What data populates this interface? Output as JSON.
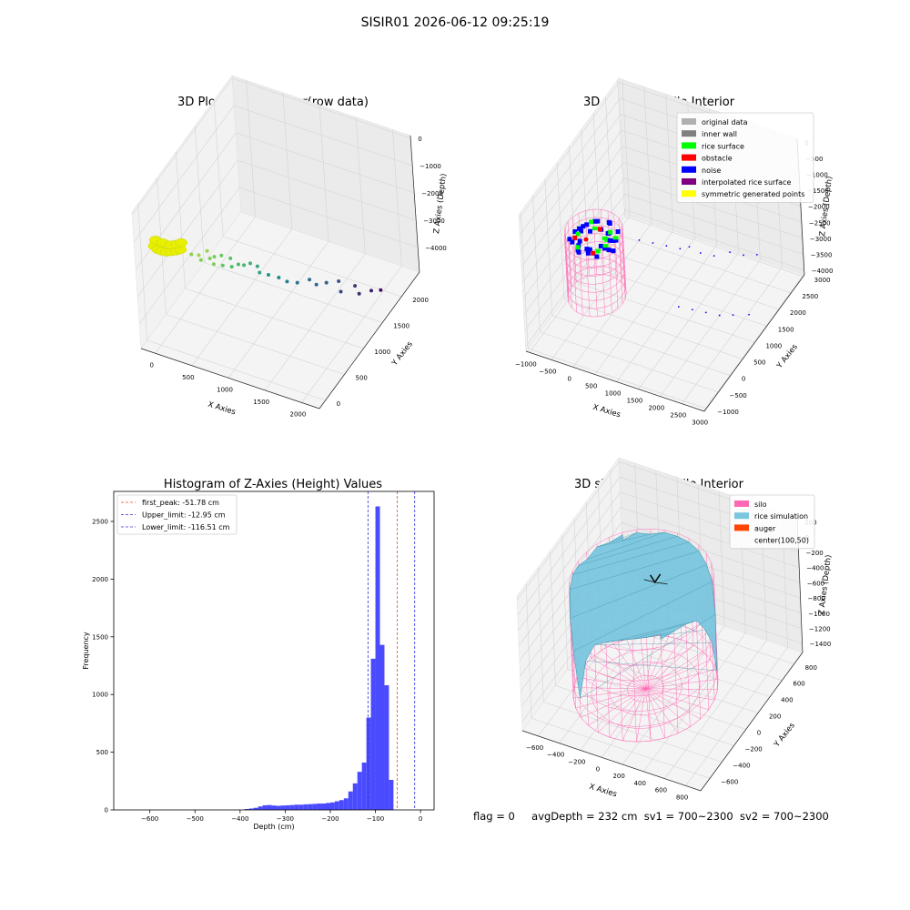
{
  "figure": {
    "suptitle": "SISIR01 2026-06-12 09:25:19",
    "status": {
      "flag": "flag = 0",
      "avg_depth": "avgDepth = 232 cm",
      "sv1": "sv1 = 700~2300",
      "sv2": "sv2 = 700~2300"
    }
  },
  "colors": {
    "background": "#ffffff",
    "pane": "#efefef",
    "grid": "#d4d4d4",
    "hist_bar": "#4a4aff",
    "first_peak_line": "#e8453c",
    "limit_line": "#3333dd",
    "silo": "#ff69b4",
    "rice": "#79c6de",
    "auger": "#ff4500",
    "original": "#b0b0b0",
    "inner_wall": "#808080",
    "rice_surface": "#00ff00",
    "obstacle": "#ff0000",
    "noise": "#0000ff",
    "interp": "#800080",
    "symmetric": "#ffff00"
  },
  "chart_data": [
    {
      "id": "raw3d",
      "type": "scatter",
      "title": "3D Plot of Silo Interior(row data)",
      "xlabel": "X Axies",
      "ylabel": "Y Axies",
      "zlabel": "Z Axies (Depth)",
      "xlim": [
        -200,
        2200
      ],
      "ylim": [
        -200,
        2300
      ],
      "zlim": [
        -4300,
        100
      ],
      "x_ticks": [
        "0",
        "500",
        "1000",
        "1500",
        "2000"
      ],
      "y_ticks": [
        "0",
        "500",
        "1000",
        "1500",
        "2000"
      ],
      "z_ticks": [
        "0",
        "−1000",
        "−2000",
        "−3000",
        "−4000"
      ],
      "colormap": "viridis",
      "series": [
        {
          "role": "symmetric",
          "points": [
            [
              -40,
              -10,
              -1200
            ],
            [
              0,
              0,
              -1300
            ],
            [
              40,
              20,
              -1350
            ],
            [
              90,
              40,
              -1380
            ],
            [
              150,
              60,
              -1350
            ],
            [
              210,
              70,
              -1300
            ],
            [
              260,
              90,
              -1250
            ],
            [
              -60,
              60,
              -1150
            ],
            [
              30,
              80,
              -1200
            ],
            [
              120,
              110,
              -1250
            ],
            [
              190,
              130,
              -1200
            ],
            [
              240,
              150,
              -1150
            ]
          ]
        },
        {
          "role": "depth",
          "points": [
            [
              320,
              230,
              -1600,
              0.82
            ],
            [
              380,
              300,
              -1700,
              0.85
            ],
            [
              430,
              260,
              -1750,
              0.8
            ],
            [
              450,
              380,
              -1650,
              0.84
            ],
            [
              500,
              350,
              -1800,
              0.8
            ],
            [
              520,
              420,
              -1850,
              0.78
            ],
            [
              560,
              330,
              -1900,
              0.8
            ],
            [
              600,
              450,
              -1800,
              0.77
            ],
            [
              640,
              400,
              -2000,
              0.74
            ],
            [
              680,
              520,
              -1950,
              0.72
            ],
            [
              720,
              470,
              -2100,
              0.7
            ],
            [
              760,
              560,
              -2150,
              0.68
            ],
            [
              800,
              620,
              -2250,
              0.66
            ],
            [
              840,
              700,
              -2300,
              0.64
            ],
            [
              900,
              760,
              -2450,
              0.6
            ],
            [
              960,
              700,
              -2500,
              0.58
            ],
            [
              1020,
              800,
              -2700,
              0.52
            ],
            [
              1100,
              900,
              -2900,
              0.46
            ],
            [
              1180,
              950,
              -3050,
              0.42
            ],
            [
              1260,
              1050,
              -3200,
              0.38
            ],
            [
              1340,
              1200,
              -3300,
              0.36
            ],
            [
              1400,
              1250,
              -3500,
              0.33
            ],
            [
              1480,
              1350,
              -3550,
              0.3
            ],
            [
              1560,
              1500,
              -3700,
              0.26
            ],
            [
              1640,
              1400,
              -3800,
              0.22
            ],
            [
              1720,
              1600,
              -3900,
              0.18
            ],
            [
              1800,
              1550,
              -4000,
              0.14
            ],
            [
              1880,
              1700,
              -4100,
              0.1
            ],
            [
              1950,
              1800,
              -4200,
              0.05
            ]
          ]
        }
      ]
    },
    {
      "id": "classify3d",
      "type": "scatter",
      "title": "3D classify of Silo Interior",
      "xlabel": "X Axies",
      "ylabel": "Y Axies",
      "zlabel": "Z Axies (Depth)",
      "xlim": [
        -1100,
        3100
      ],
      "ylim": [
        -1100,
        3100
      ],
      "zlim": [
        -4100,
        100
      ],
      "x_ticks": [
        "−1000",
        "−500",
        "0",
        "500",
        "1000",
        "1500",
        "2000",
        "2500",
        "3000"
      ],
      "y_ticks": [
        "−1000",
        "−500",
        "0",
        "500",
        "1000",
        "1500",
        "2000",
        "2500",
        "3000"
      ],
      "z_ticks": [
        "0",
        "−500",
        "−1000",
        "−1500",
        "−2000",
        "−2500",
        "−3000",
        "−3500",
        "−4000"
      ],
      "legend_position": "upper right",
      "legend": [
        {
          "label": "original data",
          "color": "#b0b0b0"
        },
        {
          "label": "inner wall",
          "color": "#808080"
        },
        {
          "label": "rice surface",
          "color": "#00ff00"
        },
        {
          "label": "obstacle",
          "color": "#ff0000"
        },
        {
          "label": "noise",
          "color": "#0000ff"
        },
        {
          "label": "interpolated rice surface",
          "color": "#800080"
        },
        {
          "label": "symmetric generated points",
          "color": "#ffff00"
        }
      ],
      "silo": {
        "center": [
          0,
          0
        ],
        "radius": 600,
        "top": -1000,
        "bottom": -3000
      },
      "noise_points": [
        [
          900,
          300,
          -1200
        ],
        [
          1100,
          500,
          -1400
        ],
        [
          1300,
          700,
          -1600
        ],
        [
          1500,
          900,
          -1800
        ],
        [
          1600,
          1100,
          -1900
        ],
        [
          1800,
          1200,
          -2100
        ],
        [
          2000,
          1400,
          -2300
        ],
        [
          2200,
          1700,
          -2400
        ],
        [
          2400,
          1900,
          -2600
        ],
        [
          2600,
          2100,
          -2700
        ],
        [
          1700,
          400,
          -3000
        ],
        [
          1900,
          600,
          -3200
        ],
        [
          2100,
          800,
          -3400
        ],
        [
          2300,
          1000,
          -3600
        ],
        [
          2500,
          1200,
          -3700
        ],
        [
          2700,
          1500,
          -3900
        ]
      ]
    },
    {
      "id": "histogram",
      "type": "bar",
      "title": "Histogram of Z-Axies (Height) Values",
      "xlabel": "Depth (cm)",
      "ylabel": "Frequency",
      "xlim": [
        -680,
        30
      ],
      "ylim": [
        0,
        2760
      ],
      "x_ticks": [
        -600,
        -500,
        -400,
        -300,
        -200,
        -100,
        0
      ],
      "x_tick_labels": [
        "−600",
        "−500",
        "−400",
        "−300",
        "−200",
        "−100",
        "0"
      ],
      "y_ticks": [
        0,
        500,
        1000,
        1500,
        2000,
        2500
      ],
      "y_tick_labels": [
        "0",
        "500",
        "1000",
        "1500",
        "2000",
        "2500"
      ],
      "bin_start": -390,
      "bin_width": 10,
      "values": [
        8,
        12,
        18,
        30,
        40,
        42,
        38,
        35,
        38,
        40,
        42,
        45,
        45,
        48,
        50,
        52,
        55,
        55,
        60,
        65,
        75,
        85,
        100,
        160,
        230,
        330,
        410,
        800,
        1310,
        2630,
        1430,
        1080,
        260
      ],
      "lines": [
        {
          "label": "first_peak: -51.78 cm",
          "x": -51.78,
          "color": "#e8453c"
        },
        {
          "label": "Upper_limit: -12.95 cm",
          "x": -12.95,
          "color": "#3333dd"
        },
        {
          "label": "Lower_limit: -116.51 cm",
          "x": -116.51,
          "color": "#3333dd"
        }
      ],
      "legend_position": "upper left"
    },
    {
      "id": "sim3d",
      "type": "area",
      "title": "3D simulation of Silo Interior",
      "xlabel": "X Axies",
      "ylabel": "Y Axies",
      "zlabel": "Z Axies (Depth)",
      "xlim": [
        -750,
        950
      ],
      "ylim": [
        -750,
        950
      ],
      "zlim": [
        -1550,
        220
      ],
      "x_ticks": [
        "−600",
        "−400",
        "−200",
        "0",
        "200",
        "400",
        "600",
        "800"
      ],
      "y_ticks": [
        "−600",
        "−400",
        "−200",
        "0",
        "200",
        "400",
        "600",
        "800"
      ],
      "z_ticks": [
        "200",
        "0",
        "−200",
        "−400",
        "−600",
        "−800",
        "−1000",
        "−1200",
        "−1400"
      ],
      "legend_position": "upper right",
      "legend": [
        {
          "label": "silo",
          "color": "#ff69b4"
        },
        {
          "label": "rice simulation",
          "color": "#79c6de"
        },
        {
          "label": "auger",
          "color": "#ff4500"
        },
        {
          "label": "center(100,50)",
          "color": ""
        }
      ],
      "silo": {
        "center": [
          0,
          0
        ],
        "radius": 600,
        "top": -50,
        "bottom": -1450
      },
      "rice_rim_depths": [
        -80,
        -120,
        -90,
        -150,
        -110,
        -100,
        -160,
        -400,
        -700,
        -1200,
        -600,
        -300,
        -200,
        -130,
        -100,
        -90
      ]
    }
  ]
}
